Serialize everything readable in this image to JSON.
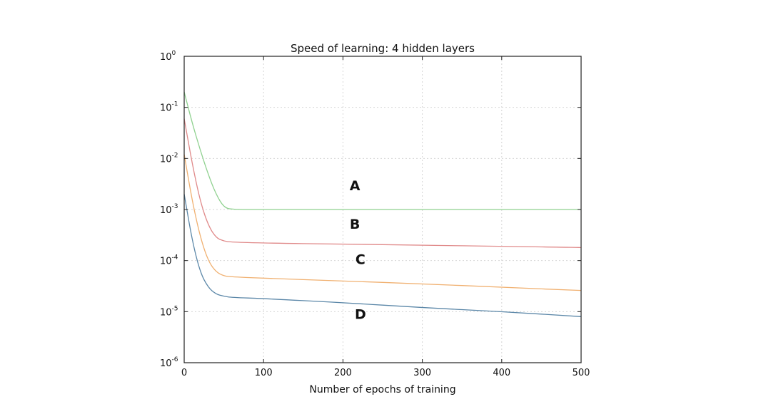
{
  "chart_data": {
    "type": "line",
    "title": "Speed of learning: 4 hidden layers",
    "xlabel": "Number of epochs of training",
    "ylabel": "",
    "xlim": [
      0,
      500
    ],
    "ylim": [
      1e-06,
      1
    ],
    "yscale": "log",
    "grid": true,
    "x_ticks": [
      0,
      100,
      200,
      300,
      400,
      500
    ],
    "y_ticks": [
      {
        "value": 1,
        "base": "10",
        "exp": "0"
      },
      {
        "value": 0.1,
        "base": "10",
        "exp": "-1"
      },
      {
        "value": 0.01,
        "base": "10",
        "exp": "-2"
      },
      {
        "value": 0.001,
        "base": "10",
        "exp": "-3"
      },
      {
        "value": 0.0001,
        "base": "10",
        "exp": "-4"
      },
      {
        "value": 1e-05,
        "base": "10",
        "exp": "-5"
      },
      {
        "value": 1e-06,
        "base": "10",
        "exp": "-6"
      }
    ],
    "series": [
      {
        "name": "A",
        "color": "#8fd18f",
        "x": [
          0,
          10,
          20,
          30,
          40,
          50,
          60,
          100,
          200,
          300,
          400,
          500
        ],
        "y": [
          0.2,
          0.05,
          0.015,
          0.005,
          0.002,
          0.0011,
          0.001,
          0.001,
          0.001,
          0.001,
          0.001,
          0.001
        ]
      },
      {
        "name": "B",
        "color": "#e08a8a",
        "x": [
          0,
          10,
          20,
          30,
          40,
          50,
          60,
          100,
          200,
          300,
          400,
          500
        ],
        "y": [
          0.06,
          0.008,
          0.0015,
          0.0005,
          0.00028,
          0.00024,
          0.00023,
          0.00022,
          0.00021,
          0.0002,
          0.00019,
          0.00018
        ]
      },
      {
        "name": "C",
        "color": "#f0b070",
        "x": [
          0,
          10,
          20,
          30,
          40,
          50,
          60,
          100,
          200,
          300,
          400,
          500
        ],
        "y": [
          0.012,
          0.0015,
          0.0003,
          0.0001,
          6e-05,
          5e-05,
          4.8e-05,
          4.5e-05,
          4e-05,
          3.5e-05,
          3e-05,
          2.6e-05
        ]
      },
      {
        "name": "D",
        "color": "#5b87a8",
        "x": [
          0,
          10,
          20,
          30,
          40,
          50,
          60,
          100,
          200,
          300,
          400,
          500
        ],
        "y": [
          0.002,
          0.00025,
          6e-05,
          3e-05,
          2.2e-05,
          2e-05,
          1.9e-05,
          1.8e-05,
          1.5e-05,
          1.2e-05,
          1e-05,
          8e-06
        ]
      }
    ],
    "annotations": [
      {
        "text": "A",
        "x": 215,
        "y": 0.0024
      },
      {
        "text": "B",
        "x": 215,
        "y": 0.00042
      },
      {
        "text": "C",
        "x": 222,
        "y": 8.5e-05
      },
      {
        "text": "D",
        "x": 222,
        "y": 7.2e-06
      }
    ]
  }
}
